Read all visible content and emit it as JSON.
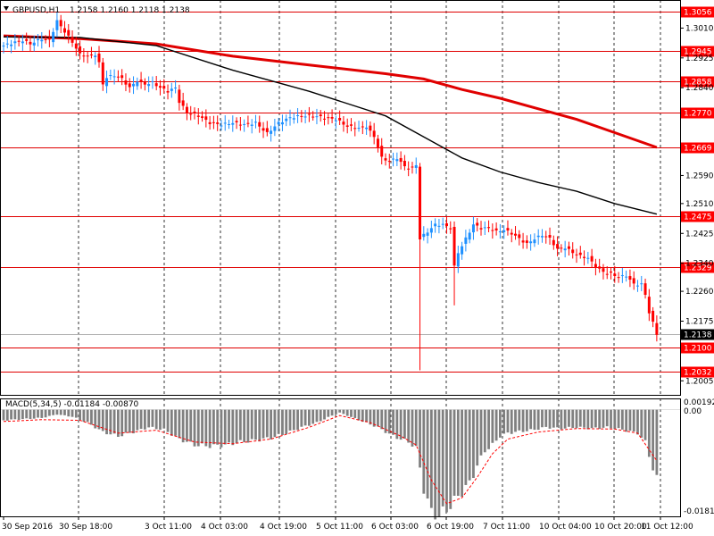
{
  "window": {
    "symbol_title": "GBPUSD,H1",
    "ohlc_text": "1.2158 1.2160 1.2118 1.2138",
    "menu_arrow_icon": "triangle-down-icon"
  },
  "colors": {
    "background": "#ffffff",
    "bull_candle": "#1e90ff",
    "bear_candle": "#ff0000",
    "ma_fast": "#000000",
    "ma_slow": "#e00000",
    "level_line": "#e00000",
    "level_label_bg": "#ff0000",
    "current_label_bg": "#000000",
    "macd_hist": "#808080",
    "macd_signal": "#ff0000",
    "grid": "#000000"
  },
  "chart_data": [
    {
      "type": "candlestick",
      "symbol": "GBPUSD",
      "timeframe": "H1",
      "ylim": [
        1.1965,
        1.309
      ],
      "price_ticks": [
        "1.3010",
        "1.2925",
        "1.2840",
        "1.2590",
        "1.2510",
        "1.2425",
        "1.2340",
        "1.2260",
        "1.2175",
        "1.2005"
      ],
      "x_labels": [
        "30 Sep 2016",
        "30 Sep 18:00",
        "3 Oct 11:00",
        "4 Oct 03:00",
        "4 Oct 19:00",
        "5 Oct 11:00",
        "6 Oct 03:00",
        "6 Oct 19:00",
        "7 Oct 11:00",
        "10 Oct 04:00",
        "10 Oct 20:00",
        "11 Oct 12:00"
      ],
      "grid": "vertical dotted",
      "horizontal_levels": [
        "1.3056",
        "1.2945",
        "1.2858",
        "1.2770",
        "1.2669",
        "1.2475",
        "1.2329",
        "1.2100",
        "1.2032"
      ],
      "current_price": "1.2138",
      "price_path": [
        [
          0,
          1.296
        ],
        [
          3,
          1.297
        ],
        [
          5,
          1.2975
        ],
        [
          7,
          1.2965
        ],
        [
          10,
          1.298
        ],
        [
          12,
          1.2975
        ],
        [
          14,
          1.303
        ],
        [
          16,
          1.3
        ],
        [
          18,
          1.297
        ],
        [
          20,
          1.2935
        ],
        [
          22,
          1.293
        ],
        [
          24,
          1.2935
        ],
        [
          25,
          1.291
        ],
        [
          26,
          1.285
        ],
        [
          27,
          1.287
        ],
        [
          29,
          1.2875
        ],
        [
          31,
          1.2865
        ],
        [
          33,
          1.284
        ],
        [
          35,
          1.286
        ],
        [
          37,
          1.285
        ],
        [
          39,
          1.2855
        ],
        [
          41,
          1.284
        ],
        [
          43,
          1.283
        ],
        [
          45,
          1.284
        ],
        [
          46,
          1.28
        ],
        [
          48,
          1.277
        ],
        [
          51,
          1.276
        ],
        [
          54,
          1.274
        ],
        [
          57,
          1.2735
        ],
        [
          60,
          1.274
        ],
        [
          63,
          1.2735
        ],
        [
          66,
          1.274
        ],
        [
          69,
          1.271
        ],
        [
          72,
          1.274
        ],
        [
          75,
          1.2755
        ],
        [
          78,
          1.276
        ],
        [
          81,
          1.276
        ],
        [
          84,
          1.2755
        ],
        [
          87,
          1.275
        ],
        [
          90,
          1.273
        ],
        [
          93,
          1.2725
        ],
        [
          95,
          1.273
        ],
        [
          97,
          1.27
        ],
        [
          99,
          1.264
        ],
        [
          101,
          1.263
        ],
        [
          103,
          1.264
        ],
        [
          105,
          1.2615
        ],
        [
          107,
          1.261
        ],
        [
          108,
          1.262
        ],
        [
          109,
          1.241
        ],
        [
          111,
          1.243
        ],
        [
          113,
          1.245
        ],
        [
          115,
          1.245
        ],
        [
          117,
          1.244
        ],
        [
          118,
          1.233
        ],
        [
          119,
          1.237
        ],
        [
          121,
          1.241
        ],
        [
          123,
          1.245
        ],
        [
          125,
          1.244
        ],
        [
          127,
          1.244
        ],
        [
          129,
          1.243
        ],
        [
          131,
          1.2435
        ],
        [
          133,
          1.2425
        ],
        [
          135,
          1.241
        ],
        [
          137,
          1.2395
        ],
        [
          139,
          1.241
        ],
        [
          141,
          1.242
        ],
        [
          143,
          1.241
        ],
        [
          145,
          1.238
        ],
        [
          147,
          1.2385
        ],
        [
          149,
          1.237
        ],
        [
          151,
          1.236
        ],
        [
          153,
          1.2355
        ],
        [
          155,
          1.233
        ],
        [
          157,
          1.2315
        ],
        [
          159,
          1.231
        ],
        [
          161,
          1.23
        ],
        [
          163,
          1.2305
        ],
        [
          165,
          1.228
        ],
        [
          167,
          1.228
        ],
        [
          168,
          1.225
        ],
        [
          169,
          1.22
        ],
        [
          170,
          1.217
        ],
        [
          171,
          1.2138
        ]
      ],
      "spikes": [
        {
          "bar": 109,
          "high": 1.262,
          "low": 1.2035
        },
        {
          "bar": 118,
          "high": 1.238,
          "low": 1.222
        }
      ],
      "ma_fast": [
        [
          0,
          1.2985
        ],
        [
          20,
          1.2983
        ],
        [
          40,
          1.296
        ],
        [
          60,
          1.289
        ],
        [
          80,
          1.283
        ],
        [
          100,
          1.276
        ],
        [
          110,
          1.27
        ],
        [
          120,
          1.264
        ],
        [
          130,
          1.26
        ],
        [
          140,
          1.257
        ],
        [
          150,
          1.2545
        ],
        [
          160,
          1.251
        ],
        [
          171,
          1.248
        ]
      ],
      "ma_slow": [
        [
          0,
          1.2988
        ],
        [
          20,
          1.298
        ],
        [
          40,
          1.2965
        ],
        [
          60,
          1.293
        ],
        [
          80,
          1.2905
        ],
        [
          100,
          1.288
        ],
        [
          110,
          1.2865
        ],
        [
          120,
          1.2835
        ],
        [
          130,
          1.281
        ],
        [
          140,
          1.278
        ],
        [
          150,
          1.275
        ],
        [
          160,
          1.2712
        ],
        [
          171,
          1.267
        ]
      ]
    },
    {
      "type": "bar",
      "indicator_label": "MACD(5,34,5) -0.01184 -0.00870",
      "ylim": [
        -0.01816,
        0.00192
      ],
      "y_ticks": [
        "0.00192",
        "0.00",
        "-0.01816"
      ],
      "histogram": [
        [
          0,
          -0.0018
        ],
        [
          5,
          -0.0016
        ],
        [
          10,
          -0.0014
        ],
        [
          14,
          -0.0008
        ],
        [
          18,
          -0.0012
        ],
        [
          22,
          -0.0022
        ],
        [
          26,
          -0.0038
        ],
        [
          30,
          -0.0045
        ],
        [
          34,
          -0.0038
        ],
        [
          38,
          -0.003
        ],
        [
          42,
          -0.0034
        ],
        [
          46,
          -0.005
        ],
        [
          50,
          -0.006
        ],
        [
          54,
          -0.0062
        ],
        [
          58,
          -0.006
        ],
        [
          62,
          -0.0055
        ],
        [
          66,
          -0.0052
        ],
        [
          70,
          -0.0048
        ],
        [
          74,
          -0.004
        ],
        [
          78,
          -0.003
        ],
        [
          82,
          -0.0022
        ],
        [
          86,
          -0.001
        ],
        [
          88,
          -0.0005
        ],
        [
          90,
          -0.001
        ],
        [
          94,
          -0.002
        ],
        [
          98,
          -0.003
        ],
        [
          102,
          -0.0045
        ],
        [
          106,
          -0.0055
        ],
        [
          108,
          -0.0065
        ],
        [
          110,
          -0.0135
        ],
        [
          112,
          -0.0175
        ],
        [
          114,
          -0.018
        ],
        [
          116,
          -0.017
        ],
        [
          118,
          -0.0155
        ],
        [
          120,
          -0.014
        ],
        [
          122,
          -0.0125
        ],
        [
          124,
          -0.0095
        ],
        [
          126,
          -0.007
        ],
        [
          128,
          -0.006
        ],
        [
          130,
          -0.0045
        ],
        [
          132,
          -0.004
        ],
        [
          134,
          -0.0038
        ],
        [
          138,
          -0.0035
        ],
        [
          142,
          -0.003
        ],
        [
          146,
          -0.0032
        ],
        [
          150,
          -0.003
        ],
        [
          154,
          -0.0032
        ],
        [
          158,
          -0.003
        ],
        [
          162,
          -0.0034
        ],
        [
          166,
          -0.004
        ],
        [
          168,
          -0.0055
        ],
        [
          170,
          -0.01
        ],
        [
          171,
          -0.0118
        ]
      ],
      "signal": [
        [
          0,
          -0.002
        ],
        [
          10,
          -0.0017
        ],
        [
          20,
          -0.0018
        ],
        [
          30,
          -0.004
        ],
        [
          40,
          -0.0035
        ],
        [
          50,
          -0.0055
        ],
        [
          60,
          -0.0058
        ],
        [
          70,
          -0.005
        ],
        [
          80,
          -0.003
        ],
        [
          88,
          -0.001
        ],
        [
          96,
          -0.0022
        ],
        [
          104,
          -0.0045
        ],
        [
          108,
          -0.006
        ],
        [
          112,
          -0.012
        ],
        [
          116,
          -0.016
        ],
        [
          120,
          -0.015
        ],
        [
          124,
          -0.0115
        ],
        [
          128,
          -0.0075
        ],
        [
          132,
          -0.005
        ],
        [
          140,
          -0.0038
        ],
        [
          150,
          -0.0032
        ],
        [
          160,
          -0.0033
        ],
        [
          166,
          -0.004
        ],
        [
          171,
          -0.0087
        ]
      ]
    }
  ]
}
